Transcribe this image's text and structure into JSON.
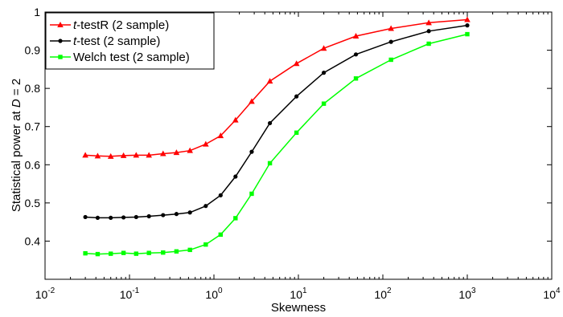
{
  "chart_data": {
    "type": "line",
    "title": "",
    "xlabel": "Skewness",
    "ylabel": "Statistical power at D = 2",
    "ylabel_parts": {
      "prefix": "Statistical power at ",
      "var": "D",
      "suffix": " = 2"
    },
    "xscale": "log",
    "xlim": [
      0.01,
      10000
    ],
    "ylim": [
      0.3,
      1.0
    ],
    "x_ticks": [
      0.01,
      0.1,
      1,
      10,
      100,
      1000,
      10000
    ],
    "x_tick_labels": [
      {
        "base": "10",
        "exp": "-2"
      },
      {
        "base": "10",
        "exp": "-1"
      },
      {
        "base": "10",
        "exp": "0"
      },
      {
        "base": "10",
        "exp": "1"
      },
      {
        "base": "10",
        "exp": "2"
      },
      {
        "base": "10",
        "exp": "3"
      },
      {
        "base": "10",
        "exp": "4"
      }
    ],
    "y_ticks": [
      0.4,
      0.5,
      0.6,
      0.7,
      0.8,
      0.9,
      1.0
    ],
    "y_tick_labels": [
      "0.4",
      "0.5",
      "0.6",
      "0.7",
      "0.8",
      "0.9",
      "1"
    ],
    "grid": false,
    "legend_position": "top-left",
    "x": [
      0.03,
      0.042,
      0.06,
      0.085,
      0.12,
      0.17,
      0.25,
      0.36,
      0.52,
      0.8,
      1.2,
      1.8,
      2.8,
      4.6,
      9.5,
      20,
      48,
      125,
      350,
      1000
    ],
    "series": [
      {
        "name": "testR (2 sample)",
        "name_italic_prefix": "t",
        "name_rest": "-testR (2 sample)",
        "color": "#ff0000",
        "marker": "triangle",
        "values": [
          0.625,
          0.623,
          0.622,
          0.624,
          0.625,
          0.625,
          0.629,
          0.632,
          0.637,
          0.654,
          0.676,
          0.717,
          0.766,
          0.819,
          0.865,
          0.905,
          0.937,
          0.957,
          0.972,
          0.98
        ]
      },
      {
        "name": "test (2 sample)",
        "name_italic_prefix": "t",
        "name_rest": "-test (2 sample)",
        "color": "#000000",
        "marker": "circle",
        "values": [
          0.463,
          0.461,
          0.461,
          0.462,
          0.463,
          0.465,
          0.468,
          0.471,
          0.475,
          0.492,
          0.52,
          0.569,
          0.634,
          0.709,
          0.779,
          0.841,
          0.889,
          0.922,
          0.95,
          0.965
        ]
      },
      {
        "name": "Welch test (2 sample)",
        "name_italic_prefix": "",
        "name_rest": "Welch test (2 sample)",
        "color": "#00ff00",
        "marker": "square",
        "values": [
          0.368,
          0.366,
          0.367,
          0.369,
          0.367,
          0.369,
          0.37,
          0.373,
          0.377,
          0.391,
          0.417,
          0.46,
          0.524,
          0.604,
          0.684,
          0.76,
          0.826,
          0.875,
          0.917,
          0.942
        ]
      }
    ]
  }
}
